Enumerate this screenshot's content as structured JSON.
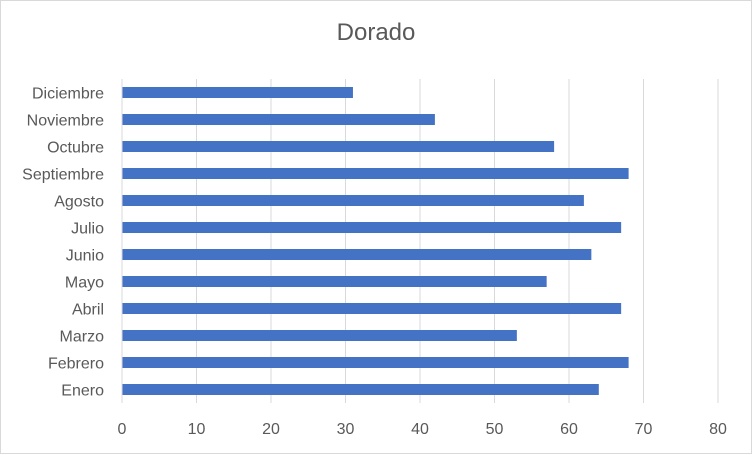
{
  "chart_data": {
    "type": "bar",
    "orientation": "horizontal",
    "title": "Dorado",
    "categories": [
      "Enero",
      "Febrero",
      "Marzo",
      "Abril",
      "Mayo",
      "Junio",
      "Julio",
      "Agosto",
      "Septiembre",
      "Octubre",
      "Noviembre",
      "Diciembre"
    ],
    "values": [
      64,
      68,
      53,
      67,
      57,
      63,
      67,
      62,
      68,
      58,
      42,
      31
    ],
    "xlabel": "",
    "ylabel": "",
    "xlim": [
      0,
      80
    ],
    "xticks": [
      "0",
      "10",
      "20",
      "30",
      "40",
      "50",
      "60",
      "70",
      "80"
    ],
    "grid": "vertical",
    "legend": "none",
    "bar_color": "#4472C4",
    "grid_color": "#d9d9d9"
  }
}
